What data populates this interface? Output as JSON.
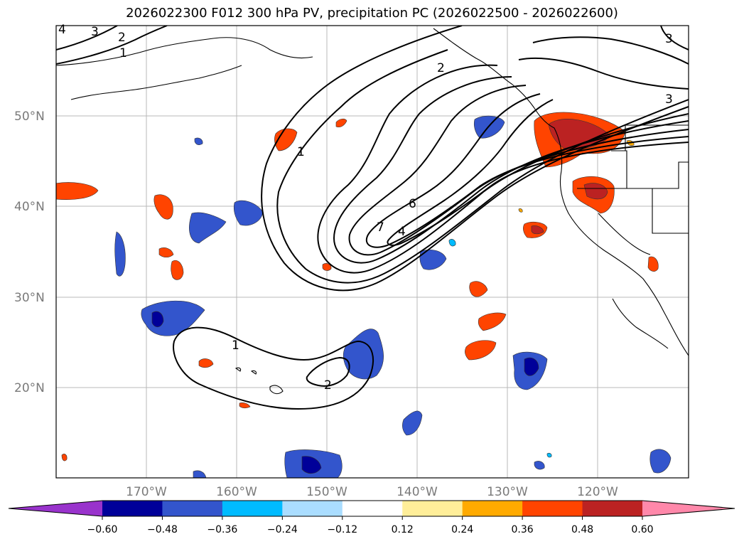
{
  "title": "2026022300 F012 300 hPa PV, precipitation PC (2026022500 - 2026022600)",
  "lat_labels": [
    "50°N",
    "40°N",
    "30°N",
    "20°N"
  ],
  "lon_labels": [
    "170°W",
    "160°W",
    "150°W",
    "140°W",
    "130°W",
    "120°W"
  ],
  "pv_contour_labels": [
    "1",
    "2",
    "3",
    "4",
    "6",
    "7",
    "1",
    "2",
    "3",
    "4",
    "3",
    "1",
    "2"
  ],
  "colorbar": {
    "colors": [
      "#9933cc",
      "#000099",
      "#3355cc",
      "#00bbff",
      "#aaddff",
      "#ffffff",
      "#ffee99",
      "#ffaa00",
      "#ff4400",
      "#bb2222",
      "#ff88aa"
    ],
    "ticks": [
      "−0.60",
      "−0.48",
      "−0.36",
      "−0.24",
      "−0.12",
      "0.12",
      "0.24",
      "0.36",
      "0.48",
      "0.60"
    ]
  }
}
